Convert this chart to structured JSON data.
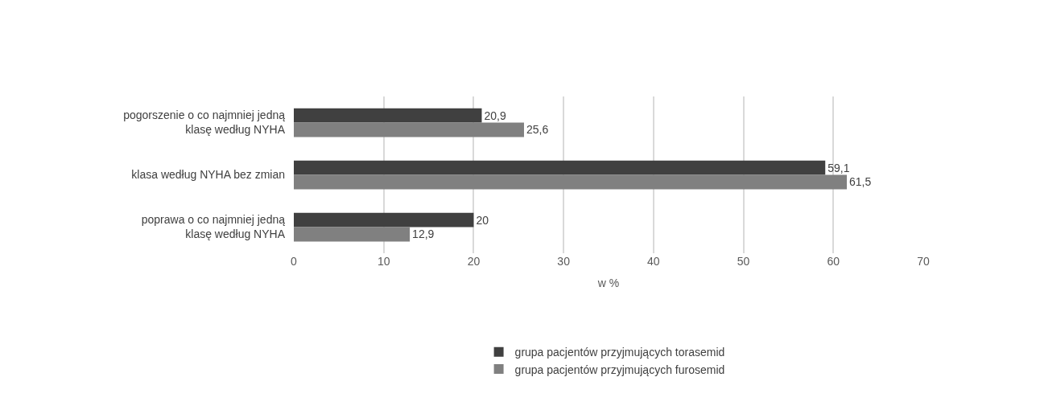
{
  "chart_data": {
    "type": "bar",
    "orientation": "horizontal",
    "xlabel": "w %",
    "categories": [
      "pogorszenie o co najmniej jedną\nklasę według NYHA",
      "klasa według NYHA bez zmian",
      "poprawa o co najmniej jedną\nklasę według NYHA"
    ],
    "series": [
      {
        "name": "grupa pacjentów przyjmujących torasemid",
        "color": "#404040",
        "values": [
          20.9,
          59.1,
          20
        ],
        "value_labels": [
          "20,9",
          "59,1",
          "20"
        ]
      },
      {
        "name": "grupa pacjentów przyjmujących furosemid",
        "color": "#808080",
        "values": [
          25.6,
          61.5,
          12.9
        ],
        "value_labels": [
          "25,6",
          "61,5",
          "12,9"
        ]
      }
    ],
    "xlim": [
      0,
      70
    ],
    "xticks": [
      0,
      10,
      20,
      30,
      40,
      50,
      60,
      70
    ],
    "grid": "x",
    "legend": "bottom"
  }
}
